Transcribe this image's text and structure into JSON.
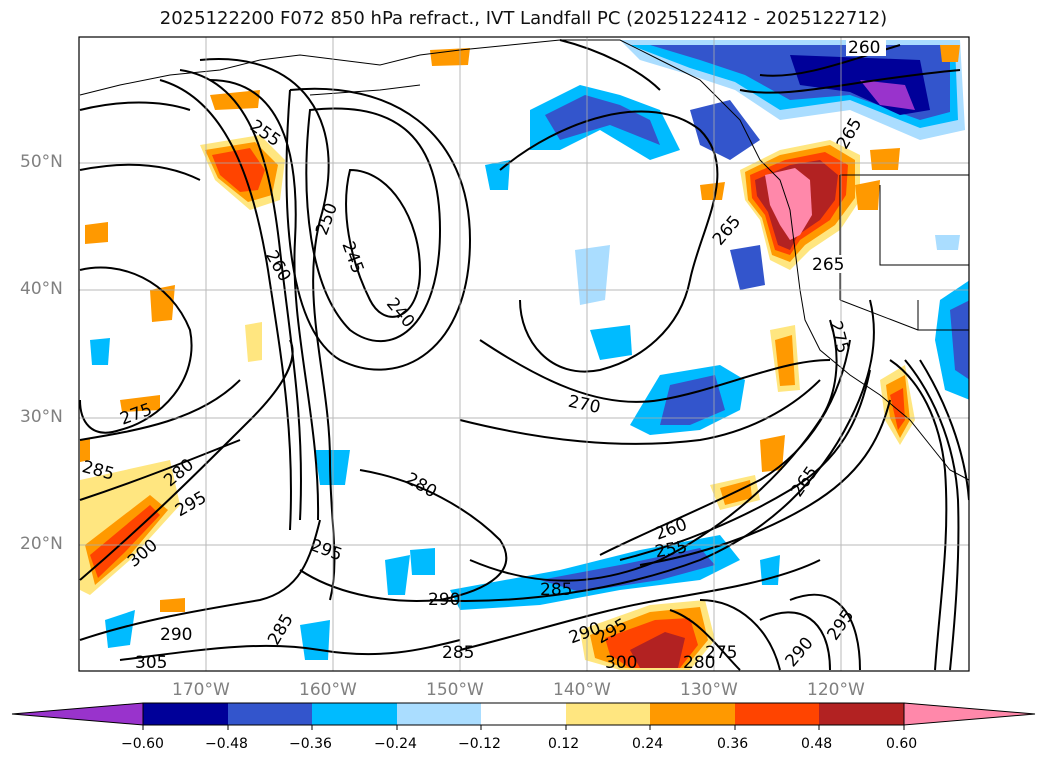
{
  "title": "2025122200 F072 850 hPa refract., IVT Landfall PC (2025122412 - 2025122712)",
  "lat_labels": [
    "50°N",
    "40°N",
    "30°N",
    "20°N"
  ],
  "lon_labels": [
    "170°W",
    "160°W",
    "150°W",
    "140°W",
    "130°W",
    "120°W"
  ],
  "contour_labels": [
    "260",
    "265",
    "255",
    "250",
    "245",
    "240",
    "260",
    "265",
    "265",
    "275",
    "270",
    "280",
    "280",
    "285",
    "275",
    "295",
    "300",
    "295",
    "290",
    "290",
    "285",
    "285",
    "260",
    "255",
    "265",
    "290",
    "295",
    "300",
    "280",
    "275",
    "290",
    "295",
    "305",
    "285"
  ],
  "colorbar": {
    "ticks": [
      "−0.60",
      "−0.48",
      "−0.36",
      "−0.24",
      "−0.12",
      "0.12",
      "0.24",
      "0.36",
      "0.48",
      "0.60"
    ],
    "colors": [
      "#9933cc",
      "#000099",
      "#3355cc",
      "#00bbff",
      "#aaddff",
      "#ffffff",
      "#ffe680",
      "#ff9900",
      "#ff4400",
      "#b22222",
      "#ff88aa"
    ]
  }
}
